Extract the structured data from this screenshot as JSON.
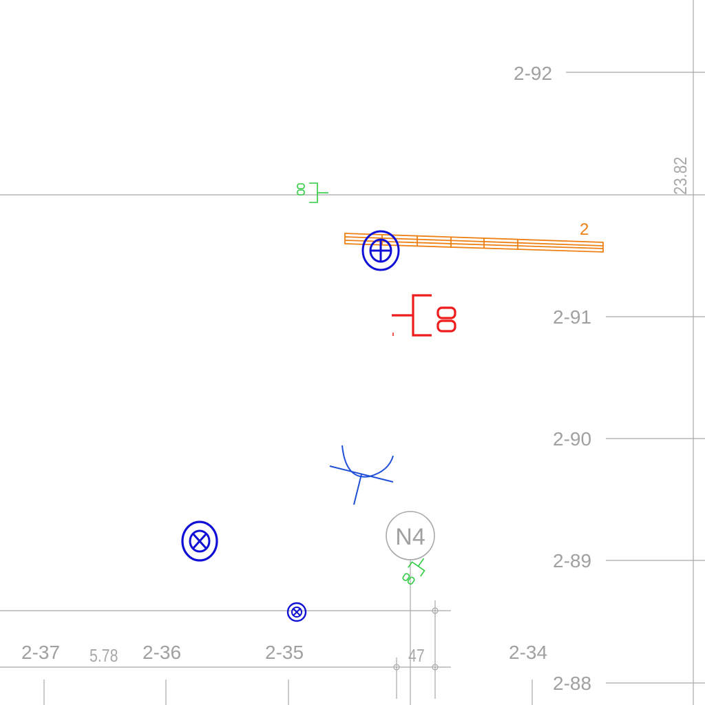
{
  "grid": {
    "row_labels": [
      "2-92",
      "2-91",
      "2-90",
      "2-89",
      "2-88"
    ],
    "column_labels": [
      "2-37",
      "2-36",
      "2-35",
      "2-34"
    ],
    "dimension_labels": [
      "5.78",
      "47",
      "23.82"
    ]
  },
  "markers": {
    "node_label": "N4",
    "orange_label": "2"
  },
  "colors": {
    "grid": "#a8a8a8",
    "grid_label": "#a0a0a0",
    "orange_bar": "#ee7f12",
    "blue_symbol": "#0f0fd6",
    "red_symbol": "#ee1c1c",
    "green_symbol": "#2ecc40",
    "light_blue_symbol": "#1f4fd8"
  },
  "icons": [
    "crosshair-circle-icon",
    "outlet-symbol-icon",
    "camera-fan-icon",
    "node-circle-icon"
  ]
}
